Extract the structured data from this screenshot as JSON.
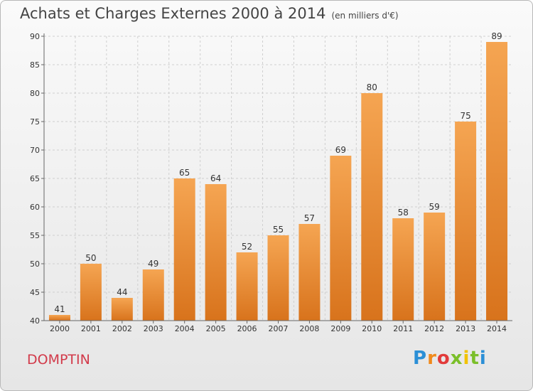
{
  "header": {
    "title": "Achats et Charges Externes 2000 à 2014",
    "subtitle": "(en milliers d'€)"
  },
  "footer": {
    "city": "DOMPTIN",
    "logo_text": "Proxiti"
  },
  "colors": {
    "bar_top": "#f5a552",
    "bar_bottom": "#d8731c",
    "city": "#d23a4a",
    "grid": "#cfcfcf"
  },
  "chart_data": {
    "type": "bar",
    "title": "Achats et Charges Externes 2000 à 2014",
    "subtitle": "(en milliers d'€)",
    "xlabel": "",
    "ylabel": "",
    "categories": [
      "2000",
      "2001",
      "2002",
      "2003",
      "2004",
      "2005",
      "2006",
      "2007",
      "2008",
      "2009",
      "2010",
      "2011",
      "2012",
      "2013",
      "2014"
    ],
    "values": [
      41,
      50,
      44,
      49,
      65,
      64,
      52,
      55,
      57,
      69,
      80,
      58,
      59,
      75,
      89
    ],
    "ylim": [
      40,
      90
    ],
    "yticks": [
      40,
      45,
      50,
      55,
      60,
      65,
      70,
      75,
      80,
      85,
      90
    ],
    "grid": true,
    "data_labels": true
  }
}
